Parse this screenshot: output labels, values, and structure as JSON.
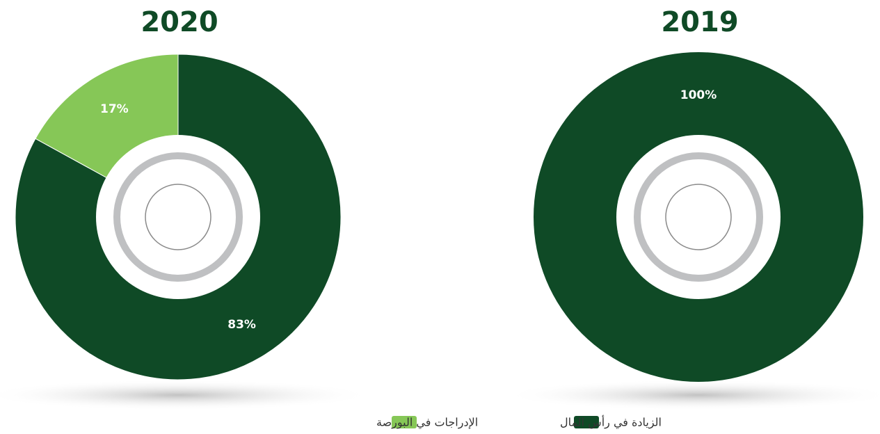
{
  "legend": [
    {
      "name": "الزيادة في رأس المال",
      "color": "#0f4a26"
    },
    {
      "name": "الإدراجات في البورصة",
      "color": "#86c757"
    }
  ],
  "chart_data": [
    {
      "type": "pie",
      "title": "2020",
      "values": [
        83,
        17
      ],
      "value_labels": [
        "83%",
        "17%"
      ]
    },
    {
      "type": "pie",
      "title": "2019",
      "values": [
        100
      ],
      "value_labels": [
        "100%"
      ]
    }
  ]
}
